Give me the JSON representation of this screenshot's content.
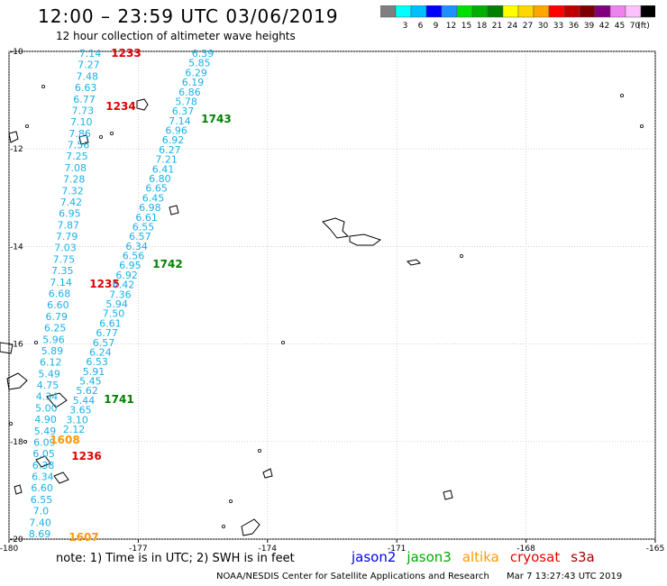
{
  "header": {
    "title": "12:00 – 23:59 UTC 03/06/2019",
    "subtitle": "12 hour collection of altimeter wave heights"
  },
  "legend": {
    "unit": "(ft)",
    "swatches": [
      {
        "color": "#7f7f7f",
        "label": ""
      },
      {
        "color": "#00ffff",
        "label": "3"
      },
      {
        "color": "#00bfff",
        "label": "6"
      },
      {
        "color": "#0000ff",
        "label": "9"
      },
      {
        "color": "#1e90ff",
        "label": "12"
      },
      {
        "color": "#00e000",
        "label": "15"
      },
      {
        "color": "#00b000",
        "label": "18"
      },
      {
        "color": "#008000",
        "label": "21"
      },
      {
        "color": "#ffff00",
        "label": "24"
      },
      {
        "color": "#ffd700",
        "label": "27"
      },
      {
        "color": "#ffa500",
        "label": "30"
      },
      {
        "color": "#ff0000",
        "label": "33"
      },
      {
        "color": "#c00000",
        "label": "36"
      },
      {
        "color": "#800000",
        "label": "39"
      },
      {
        "color": "#800080",
        "label": "42"
      },
      {
        "color": "#ee82ee",
        "label": "45"
      },
      {
        "color": "#ffc0ff",
        "label": "70"
      },
      {
        "color": "#000000",
        "label": ""
      }
    ]
  },
  "map": {
    "lon_range": [
      -180,
      -165
    ],
    "lat_range": [
      -20,
      -10
    ],
    "x_ticks": [
      "-180",
      "-177",
      "-174",
      "-171",
      "-168",
      "-165"
    ],
    "y_ticks": [
      "-10",
      "-12",
      "-14",
      "-16",
      "-18",
      "-20"
    ],
    "colors": {
      "swh": "#1ab0e8",
      "time": "#e00000",
      "jason3_time": "#008000",
      "altika_time": "#ff9900"
    }
  },
  "tracks": {
    "track_a": {
      "values": [
        "7.14",
        "7.27",
        "7.48",
        "6.63",
        "6.77",
        "7.73",
        "7.10",
        "7.86",
        "7.56",
        "7.25",
        "7.08",
        "7.28",
        "7.32",
        "7.42",
        "6.95",
        "7.87",
        "7.79",
        "7.03",
        "7.75",
        "7.35",
        "7.14",
        "6.68",
        "6.60",
        "6.79",
        "6.25",
        "5.96",
        "5.89",
        "6.12",
        "5.49",
        "4.75",
        "4.34",
        "5.00",
        "4.90",
        "5.49",
        "6.09",
        "6.05",
        "6.38",
        "6.34",
        "6.60",
        "6.55",
        "7.0",
        "7.40",
        "8.69"
      ],
      "times": [
        "1233",
        "1234",
        "1235",
        "1236"
      ]
    },
    "track_b": {
      "values": [
        "6.39",
        "5.85",
        "6.29",
        "6.19",
        "6.86",
        "5.78",
        "6.37",
        "7.14",
        "6.96",
        "6.92",
        "6.27",
        "7.21",
        "6.41",
        "6.80",
        "6.65",
        "6.45",
        "6.98",
        "6.61",
        "6.55",
        "6.57",
        "6.34",
        "6.56",
        "6.95",
        "6.92",
        "6.42",
        "7.36",
        "5.94",
        "7.50",
        "6.61",
        "6.77",
        "6.57",
        "6.24",
        "6.53",
        "5.91",
        "5.45",
        "5.62",
        "5.44",
        "3.65",
        "3.10",
        "2.12"
      ],
      "times": [
        "1743",
        "1742",
        "1741"
      ]
    },
    "altika_times": [
      "1608",
      "1607"
    ]
  },
  "footer": {
    "note": "note:  1) Time is in UTC;  2) SWH is in feet",
    "satellites": [
      {
        "name": "jason2",
        "color": "#0000ee"
      },
      {
        "name": "jason3",
        "color": "#00aa00"
      },
      {
        "name": "altika",
        "color": "#ff9900"
      },
      {
        "name": "cryosat",
        "color": "#ee0000"
      },
      {
        "name": "s3a",
        "color": "#aa0000"
      }
    ],
    "credit": "NOAA/NESDIS Center for Satellite Applications and Research",
    "timestamp": "Mar  7 13:27:43 UTC 2019"
  }
}
